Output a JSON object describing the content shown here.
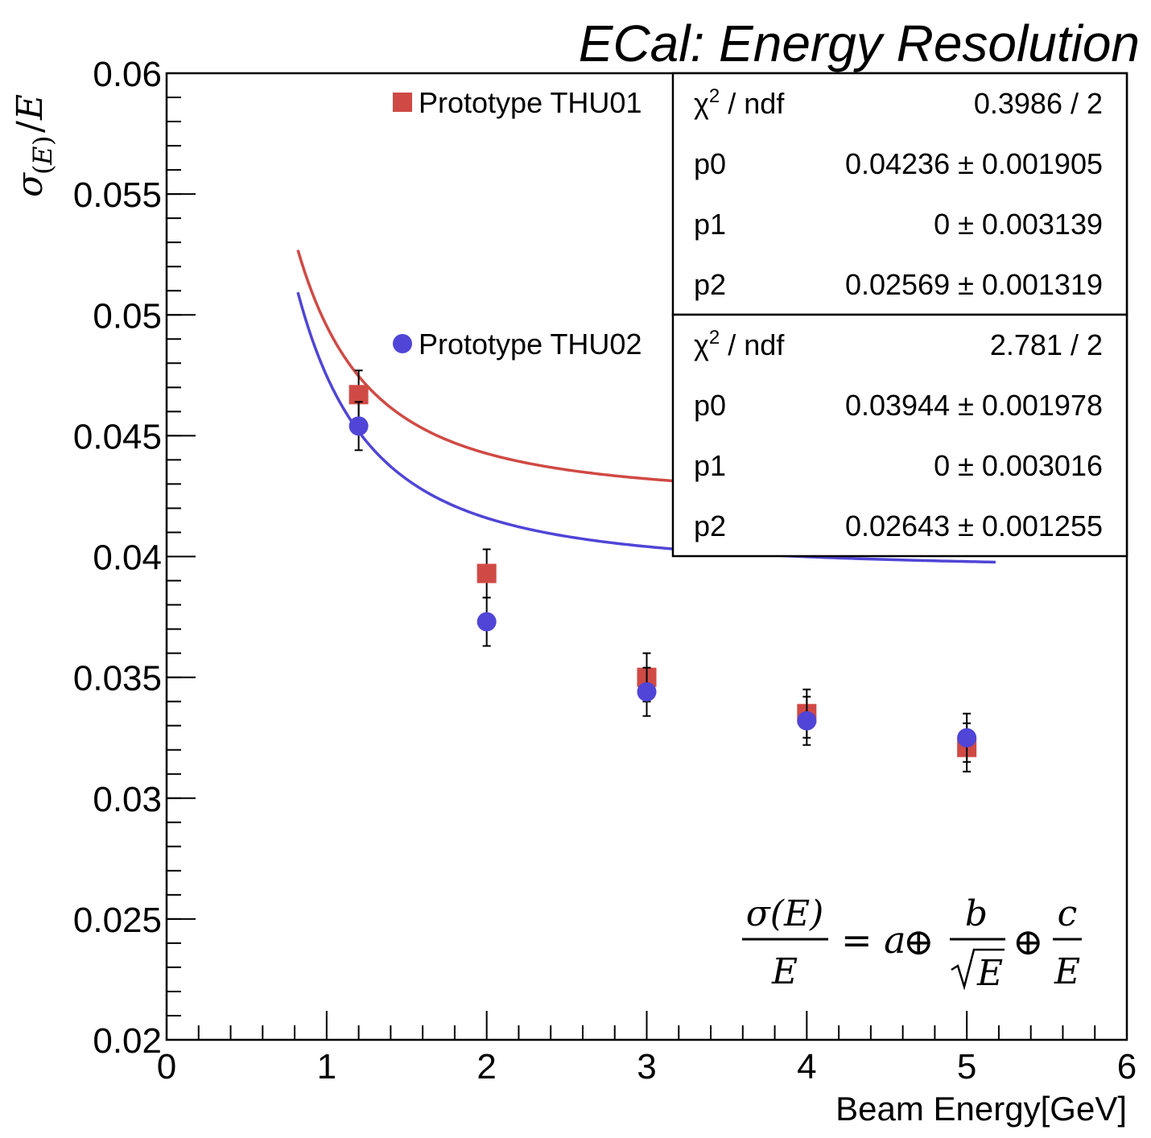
{
  "chart_data": {
    "type": "scatter",
    "title": "ECal: Energy Resolution",
    "xlabel": "Beam Energy[GeV]",
    "ylabel": "σ(E)/E",
    "xlim": [
      0,
      6
    ],
    "ylim": [
      0.02,
      0.06
    ],
    "x_ticks": [
      "0",
      "1",
      "2",
      "3",
      "4",
      "5",
      "6"
    ],
    "y_ticks": [
      "0.02",
      "0.025",
      "0.03",
      "0.035",
      "0.04",
      "0.045",
      "0.05",
      "0.055",
      "0.06"
    ],
    "grid": false,
    "legend_position": "top",
    "series": [
      {
        "name": "Prototype THU01",
        "color": "#d04a45",
        "marker": "square",
        "x": [
          1.2,
          2,
          3,
          4,
          5
        ],
        "y": [
          0.0467,
          0.0393,
          0.035,
          0.0335,
          0.0321
        ],
        "yerr": [
          0.001,
          0.001,
          0.001,
          0.001,
          0.001
        ]
      },
      {
        "name": "Prototype THU02",
        "color": "#5045d6",
        "marker": "circle",
        "x": [
          1.2,
          2,
          3,
          4,
          5
        ],
        "y": [
          0.0454,
          0.0373,
          0.0344,
          0.0332,
          0.0325
        ],
        "yerr": [
          0.001,
          0.001,
          0.001,
          0.001,
          0.001
        ]
      }
    ],
    "fits": [
      {
        "series": "Prototype THU01",
        "color": "#d04a45",
        "p0": 0.04236,
        "p1": 0,
        "p2": 0.02569,
        "x_range": [
          0.82,
          5.18
        ]
      },
      {
        "series": "Prototype THU02",
        "color": "#5045d6",
        "p0": 0.03944,
        "p1": 0,
        "p2": 0.02643,
        "x_range": [
          0.82,
          5.18
        ]
      }
    ],
    "stat_boxes": [
      {
        "rows": [
          {
            "label": "χ2 / ndf",
            "value": "0.3986 / 2"
          },
          {
            "label": "p0",
            "value": "0.04236 ± 0.001905"
          },
          {
            "label": "p1",
            "value": "0 ± 0.003139"
          },
          {
            "label": "p2",
            "value": "0.02569 ± 0.001319"
          }
        ]
      },
      {
        "rows": [
          {
            "label": "χ2 / ndf",
            "value": "2.781 / 2"
          },
          {
            "label": "p0",
            "value": "0.03944 ± 0.001978"
          },
          {
            "label": "p1",
            "value": "0 ± 0.003016"
          },
          {
            "label": "p2",
            "value": "0.02643 ± 0.001255"
          }
        ]
      }
    ],
    "annotation": {
      "num": "σ(E)",
      "den": "E",
      "eq": "= a",
      "b": "b",
      "sqrtE": "E",
      "c": "c",
      "cden": "E",
      "oplus": "⊕"
    }
  }
}
